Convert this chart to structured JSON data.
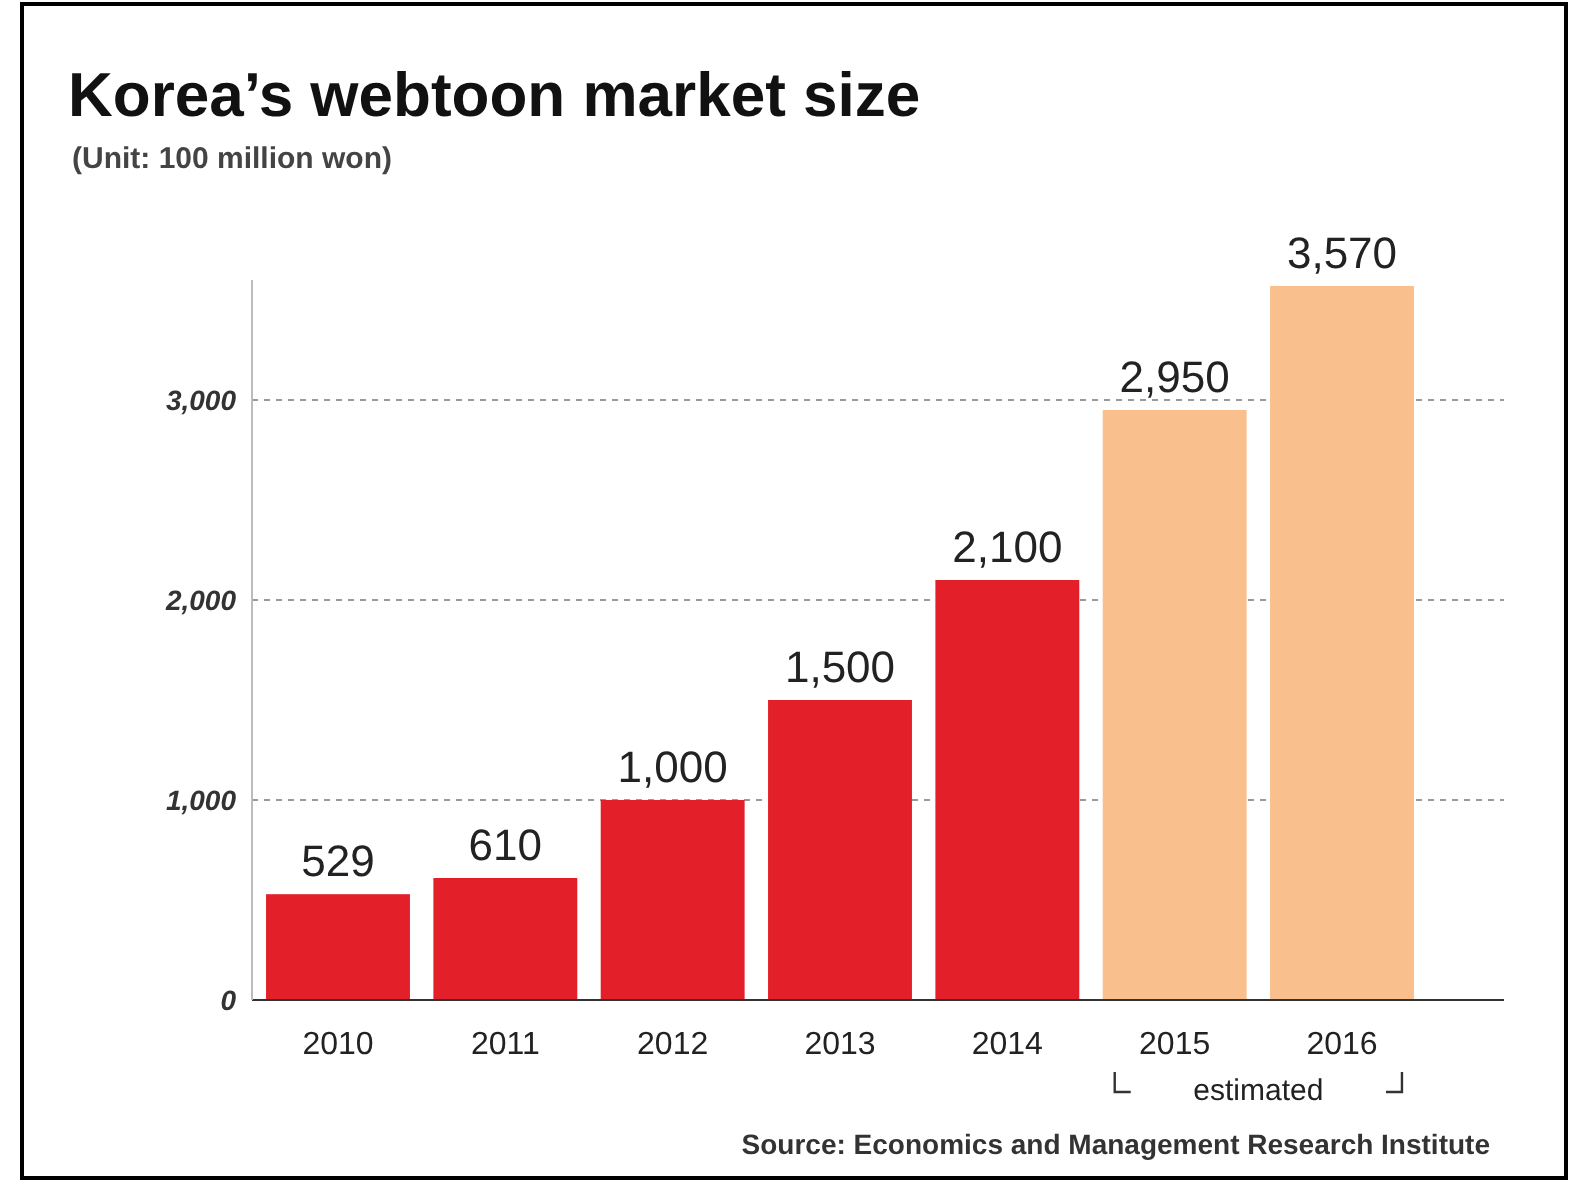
{
  "chart_data": {
    "type": "bar",
    "title": "Korea’s webtoon market size",
    "subtitle": "(Unit: 100 million won)",
    "categories": [
      "2010",
      "2011",
      "2012",
      "2013",
      "2014",
      "2015",
      "2016"
    ],
    "values": [
      529,
      610,
      1000,
      1500,
      2100,
      2950,
      3570
    ],
    "colors": [
      "#e3202a",
      "#e3202a",
      "#e3202a",
      "#e3202a",
      "#e3202a",
      "#f9c08d",
      "#f9c08d"
    ],
    "value_labels": [
      "529",
      "610",
      "1,000",
      "1,500",
      "2,100",
      "2,950",
      "3,570"
    ],
    "ylim": [
      0,
      3600
    ],
    "yticks": [
      0,
      {
        "value": 1000,
        "label": "1,000"
      },
      {
        "value": 2000,
        "label": "2,000"
      },
      {
        "value": 3000,
        "label": "3,000"
      }
    ],
    "grid": "y",
    "annotations": [
      "estimated",
      "Source: Economics and Management Research Institute"
    ]
  }
}
